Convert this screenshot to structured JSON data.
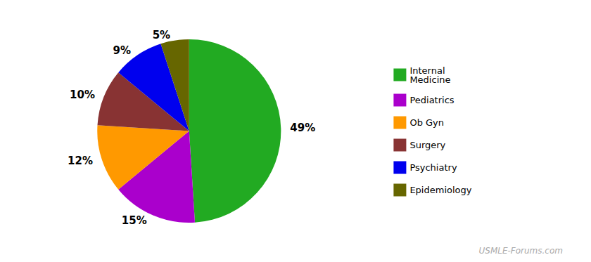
{
  "chart_data": {
    "type": "pie",
    "categories": [
      "Internal\nMedicine",
      "Pediatrics",
      "Ob Gyn",
      "Surgery",
      "Psychiatry",
      "Epidemiology"
    ],
    "values": [
      49,
      15,
      12,
      10,
      9,
      5
    ],
    "value_labels": [
      "49%",
      "15%",
      "12%",
      "10%",
      "9%",
      "5%"
    ],
    "colors": [
      "#22aa22",
      "#aa00cc",
      "#ff9900",
      "#883333",
      "#0000ee",
      "#666600"
    ],
    "data_labels": true,
    "legend": "right",
    "annotations": [
      "USMLE-Forums.com"
    ]
  }
}
